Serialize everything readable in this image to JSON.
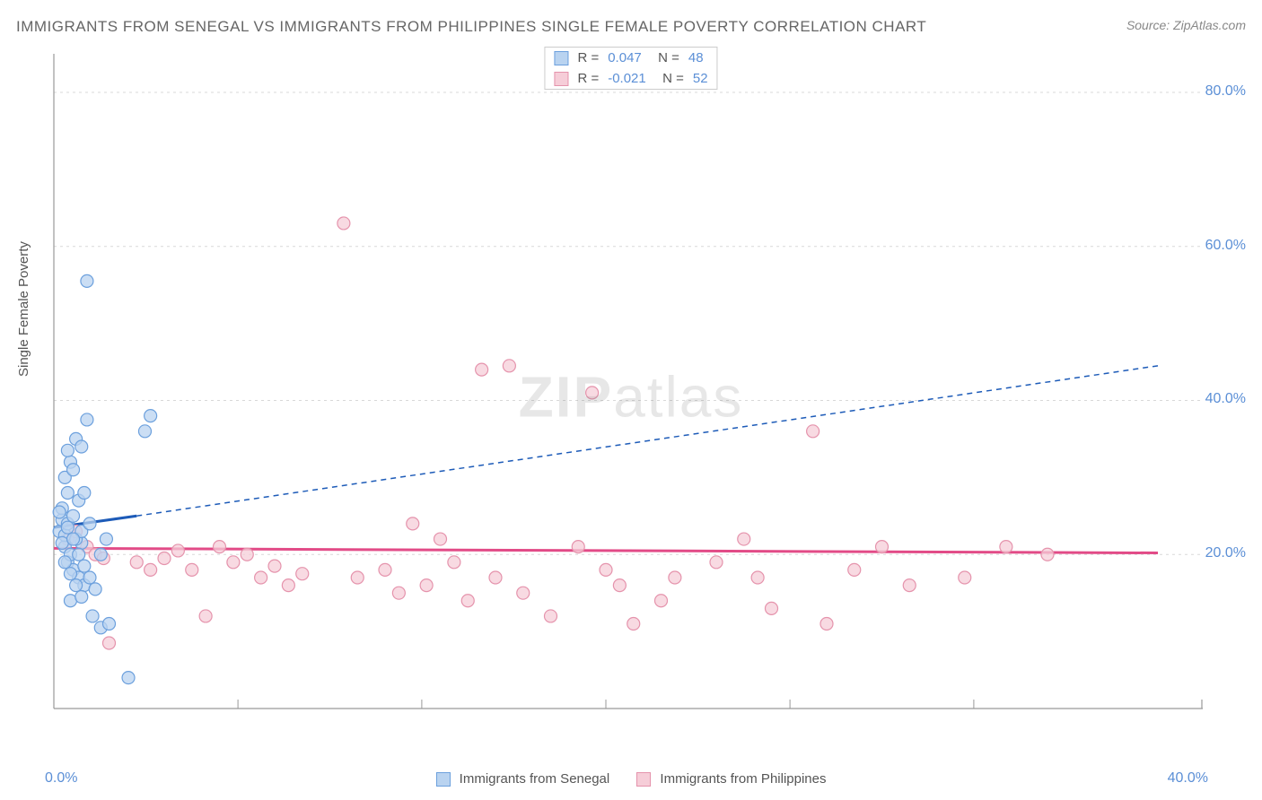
{
  "title": "IMMIGRANTS FROM SENEGAL VS IMMIGRANTS FROM PHILIPPINES SINGLE FEMALE POVERTY CORRELATION CHART",
  "source": "Source: ZipAtlas.com",
  "y_axis_label": "Single Female Poverty",
  "watermark_bold": "ZIP",
  "watermark_rest": "atlas",
  "chart": {
    "type": "scatter",
    "background_color": "#ffffff",
    "grid_color": "#d8d8d8",
    "axis_line_color": "#999999",
    "xlim": [
      0,
      40
    ],
    "ylim": [
      0,
      85
    ],
    "x_ticks": [
      0.0,
      40.0
    ],
    "x_tick_labels": [
      "0.0%",
      "40.0%"
    ],
    "x_grid_unlabeled": [
      6.67,
      13.33,
      20.0,
      26.67,
      33.33
    ],
    "y_ticks": [
      20.0,
      40.0,
      60.0,
      80.0
    ],
    "y_tick_labels": [
      "20.0%",
      "40.0%",
      "60.0%",
      "80.0%"
    ],
    "marker_radius": 7,
    "marker_stroke_width": 1.2,
    "trend_line_width_solid": 3,
    "trend_line_width_dash": 1.5,
    "trend_dash_pattern": "6,5",
    "series": [
      {
        "name": "Immigrants from Senegal",
        "fill_color": "#b9d3f0",
        "stroke_color": "#6ca0dd",
        "trend_color": "#1d5bb8",
        "R": "0.047",
        "N": "48",
        "trend_solid": {
          "x1": 0,
          "y1": 23.5,
          "x2": 3.0,
          "y2": 25.0
        },
        "trend_dash": {
          "x1": 3.0,
          "y1": 25.0,
          "x2": 40.0,
          "y2": 44.5
        },
        "points": [
          [
            0.2,
            23
          ],
          [
            0.3,
            24.5
          ],
          [
            0.4,
            21
          ],
          [
            0.5,
            28
          ],
          [
            0.4,
            30
          ],
          [
            0.6,
            32
          ],
          [
            0.5,
            33.5
          ],
          [
            0.8,
            35
          ],
          [
            0.7,
            31
          ],
          [
            1.0,
            34
          ],
          [
            1.2,
            37.5
          ],
          [
            1.0,
            21.5
          ],
          [
            0.5,
            19
          ],
          [
            0.7,
            18
          ],
          [
            0.9,
            17
          ],
          [
            1.1,
            16
          ],
          [
            0.6,
            14
          ],
          [
            1.4,
            12
          ],
          [
            1.7,
            10.5
          ],
          [
            1.2,
            55.5
          ],
          [
            3.5,
            38
          ],
          [
            3.3,
            36
          ],
          [
            0.3,
            26
          ],
          [
            0.4,
            22.5
          ],
          [
            0.6,
            20
          ],
          [
            0.8,
            22
          ],
          [
            1.0,
            23
          ],
          [
            1.3,
            24
          ],
          [
            0.5,
            24
          ],
          [
            0.7,
            25
          ],
          [
            0.9,
            27
          ],
          [
            1.1,
            28
          ],
          [
            0.2,
            25.5
          ],
          [
            0.3,
            21.5
          ],
          [
            0.5,
            23.5
          ],
          [
            0.7,
            22
          ],
          [
            0.9,
            20
          ],
          [
            1.1,
            18.5
          ],
          [
            1.3,
            17
          ],
          [
            1.5,
            15.5
          ],
          [
            1.7,
            20
          ],
          [
            1.9,
            22
          ],
          [
            0.4,
            19
          ],
          [
            0.6,
            17.5
          ],
          [
            0.8,
            16
          ],
          [
            1.0,
            14.5
          ],
          [
            2.7,
            4
          ],
          [
            2.0,
            11
          ]
        ]
      },
      {
        "name": "Immigrants from Philippines",
        "fill_color": "#f6cdd8",
        "stroke_color": "#e593ac",
        "trend_color": "#e24b87",
        "R": "-0.021",
        "N": "52",
        "trend_solid": {
          "x1": 0,
          "y1": 20.8,
          "x2": 40.0,
          "y2": 20.2
        },
        "trend_dash": null,
        "points": [
          [
            0.5,
            22
          ],
          [
            0.8,
            23
          ],
          [
            1.2,
            21
          ],
          [
            1.5,
            20
          ],
          [
            2.0,
            8.5
          ],
          [
            3.0,
            19
          ],
          [
            3.5,
            18
          ],
          [
            4.0,
            19.5
          ],
          [
            4.5,
            20.5
          ],
          [
            5.0,
            18
          ],
          [
            5.5,
            12
          ],
          [
            6.0,
            21
          ],
          [
            6.5,
            19
          ],
          [
            7.0,
            20
          ],
          [
            7.5,
            17
          ],
          [
            8.0,
            18.5
          ],
          [
            8.5,
            16
          ],
          [
            9.0,
            17.5
          ],
          [
            10.5,
            63
          ],
          [
            11.0,
            17
          ],
          [
            12.0,
            18
          ],
          [
            12.5,
            15
          ],
          [
            13.0,
            24
          ],
          [
            13.5,
            16
          ],
          [
            14.0,
            22
          ],
          [
            14.5,
            19
          ],
          [
            15.0,
            14
          ],
          [
            15.5,
            44
          ],
          [
            16.0,
            17
          ],
          [
            16.5,
            44.5
          ],
          [
            17.0,
            15
          ],
          [
            18.0,
            12
          ],
          [
            19.0,
            21
          ],
          [
            19.5,
            41
          ],
          [
            20.0,
            18
          ],
          [
            20.5,
            16
          ],
          [
            21.0,
            11
          ],
          [
            22.0,
            14
          ],
          [
            22.5,
            17
          ],
          [
            24.0,
            19
          ],
          [
            25.0,
            22
          ],
          [
            25.5,
            17
          ],
          [
            26.0,
            13
          ],
          [
            27.5,
            36
          ],
          [
            28.0,
            11
          ],
          [
            29.0,
            18
          ],
          [
            30.0,
            21
          ],
          [
            31.0,
            16
          ],
          [
            33.0,
            17
          ],
          [
            34.5,
            21
          ],
          [
            36.0,
            20
          ],
          [
            1.8,
            19.5
          ]
        ]
      }
    ]
  },
  "bottom_legend": {
    "items": [
      {
        "swatch_fill": "#b9d3f0",
        "swatch_stroke": "#6ca0dd",
        "label": "Immigrants from Senegal"
      },
      {
        "swatch_fill": "#f6cdd8",
        "swatch_stroke": "#e593ac",
        "label": "Immigrants from Philippines"
      }
    ]
  }
}
